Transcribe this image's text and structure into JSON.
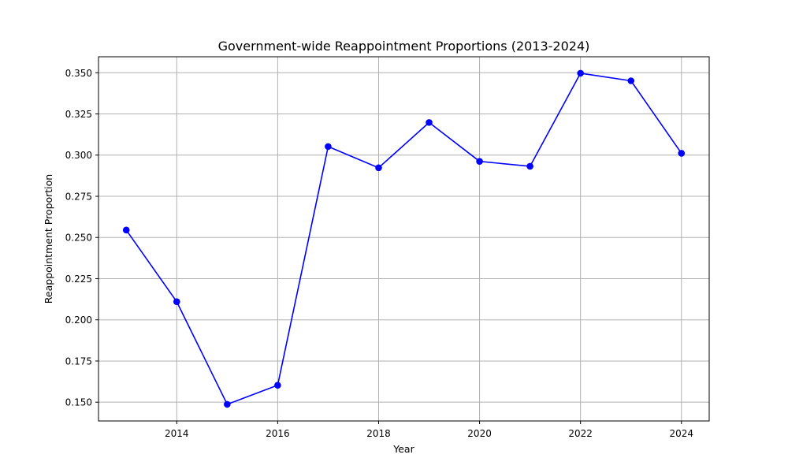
{
  "chart_data": {
    "type": "line",
    "title": "Government-wide Reappointment Proportions (2013-2024)",
    "xlabel": "Year",
    "ylabel": "Reappointment Proportion",
    "x": [
      2013,
      2014,
      2015,
      2016,
      2017,
      2018,
      2019,
      2020,
      2021,
      2022,
      2023,
      2024
    ],
    "series": [
      {
        "values": [
          0.2545,
          0.211,
          0.1487,
          0.1603,
          0.3052,
          0.2923,
          0.3198,
          0.2962,
          0.2932,
          0.3497,
          0.3451,
          0.3011
        ],
        "color": "#0000ff",
        "marker": "circle"
      }
    ],
    "xlim": [
      2012.45,
      2024.55
    ],
    "ylim": [
      0.1386,
      0.3597
    ],
    "xticks": [
      2014,
      2016,
      2018,
      2020,
      2022,
      2024
    ],
    "xtick_labels": [
      "2014",
      "2016",
      "2018",
      "2020",
      "2022",
      "2024"
    ],
    "yticks": [
      0.15,
      0.175,
      0.2,
      0.225,
      0.25,
      0.275,
      0.3,
      0.325,
      0.35
    ],
    "ytick_labels": [
      "0.150",
      "0.175",
      "0.200",
      "0.225",
      "0.250",
      "0.275",
      "0.300",
      "0.325",
      "0.350"
    ],
    "grid": true,
    "legend": "none"
  }
}
